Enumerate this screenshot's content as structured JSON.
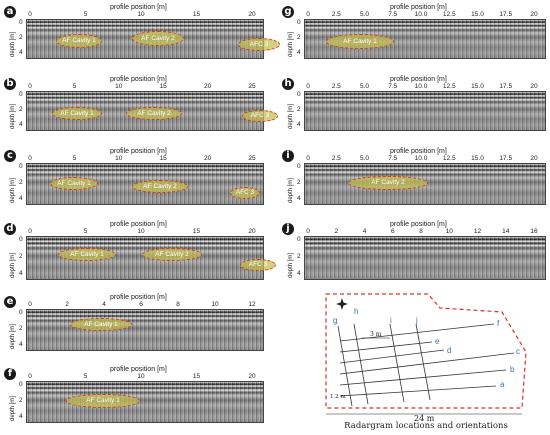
{
  "axis_title": "profile position [m]",
  "depth_label": "depth [m]",
  "panels": [
    {
      "id": "a",
      "ticks": [
        "0",
        "5",
        "10",
        "15",
        "20"
      ],
      "cavities": [
        "AF Cavity 1",
        "AF Cavity 2",
        "AFC 3"
      ]
    },
    {
      "id": "b",
      "ticks": [
        "0",
        "5",
        "10",
        "15",
        "20",
        "25"
      ],
      "cavities": [
        "AF Cavity 1",
        "AF Cavity 2",
        "AFC 3"
      ]
    },
    {
      "id": "c",
      "ticks": [
        "0",
        "5",
        "10",
        "15",
        "20",
        "25"
      ],
      "cavities": [
        "AF Cavity 1",
        "AF Cavity 2",
        "AFC 3"
      ]
    },
    {
      "id": "d",
      "ticks": [
        "0",
        "5",
        "10",
        "15",
        "20"
      ],
      "cavities": [
        "AF Cavity 1",
        "AF Cavity 2",
        "AFC 3"
      ]
    },
    {
      "id": "e",
      "ticks": [
        "0",
        "2",
        "4",
        "6",
        "8",
        "10",
        "12"
      ],
      "cavities": [
        "AF Cavity 1"
      ]
    },
    {
      "id": "f",
      "ticks": [
        "0",
        "5",
        "10",
        "15",
        "20"
      ],
      "cavities": [
        "AF Cavity 1"
      ]
    },
    {
      "id": "g",
      "ticks": [
        "0",
        "2.5",
        "5.0",
        "7.5",
        "10.0",
        "12.5",
        "15.0",
        "17.5",
        "20"
      ],
      "cavities": [
        "AF Cavity 1"
      ]
    },
    {
      "id": "h",
      "ticks": [
        "0",
        "2.5",
        "5.0",
        "7.5",
        "10.0",
        "12.5",
        "15.0",
        "17.5",
        "20"
      ],
      "cavities": []
    },
    {
      "id": "i",
      "ticks": [
        "0",
        "2.5",
        "5.0",
        "7.5",
        "10.0",
        "12.5",
        "15.0",
        "17.5",
        "20"
      ],
      "cavities": [
        "AF Cavity 2"
      ]
    },
    {
      "id": "j",
      "ticks": [
        "0",
        "2",
        "4",
        "6",
        "8",
        "10",
        "12",
        "14",
        "16"
      ],
      "cavities": []
    }
  ],
  "depth_ticks": [
    "0",
    "2",
    "4"
  ],
  "map": {
    "caption": "Radargram locations and orientations",
    "width_label": "24 m",
    "spacing_label": "3 m",
    "row_spacing_label": "1.2 m",
    "line_labels": [
      "a",
      "b",
      "c",
      "d",
      "e",
      "f",
      "g",
      "h",
      "i",
      "j"
    ]
  }
}
